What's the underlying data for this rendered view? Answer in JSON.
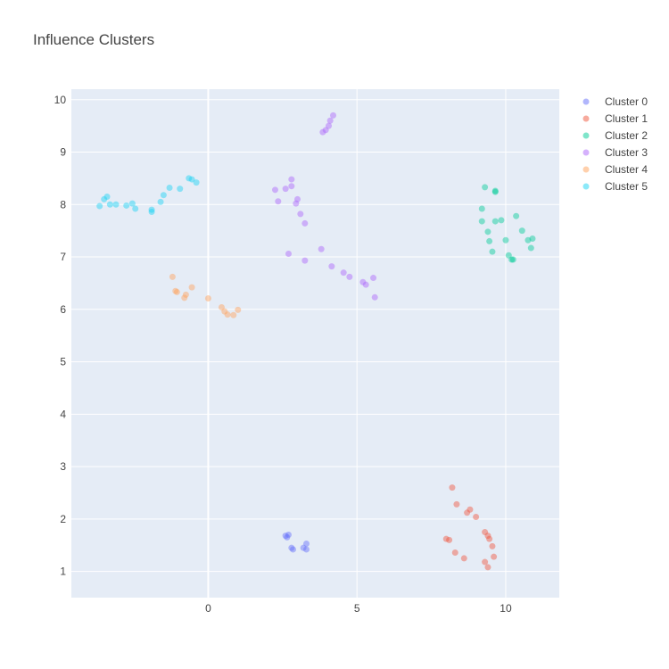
{
  "chart_data": {
    "type": "scatter",
    "title": "Influence Clusters",
    "xlabel": "",
    "ylabel": "",
    "xlim": [
      -4.6,
      11.8
    ],
    "ylim": [
      0.5,
      10.2
    ],
    "x_ticks": [
      0,
      5,
      10
    ],
    "y_ticks": [
      1,
      2,
      3,
      4,
      5,
      6,
      7,
      8,
      9,
      10
    ],
    "grid": true,
    "legend_position": "top-right",
    "series": [
      {
        "name": "Cluster 0",
        "color": "#636efa",
        "points": [
          [
            2.6,
            1.68
          ],
          [
            2.7,
            1.7
          ],
          [
            2.65,
            1.65
          ],
          [
            2.8,
            1.45
          ],
          [
            2.85,
            1.42
          ],
          [
            3.2,
            1.45
          ],
          [
            3.3,
            1.42
          ],
          [
            3.3,
            1.53
          ]
        ]
      },
      {
        "name": "Cluster 1",
        "color": "#EF553B",
        "points": [
          [
            8.2,
            2.6
          ],
          [
            8.35,
            2.28
          ],
          [
            8.7,
            2.12
          ],
          [
            8.8,
            2.18
          ],
          [
            9.0,
            2.04
          ],
          [
            8.0,
            1.62
          ],
          [
            8.1,
            1.6
          ],
          [
            9.3,
            1.75
          ],
          [
            9.4,
            1.68
          ],
          [
            9.45,
            1.62
          ],
          [
            9.55,
            1.48
          ],
          [
            8.3,
            1.36
          ],
          [
            8.6,
            1.25
          ],
          [
            9.6,
            1.28
          ],
          [
            9.3,
            1.18
          ],
          [
            9.4,
            1.08
          ]
        ]
      },
      {
        "name": "Cluster 2",
        "color": "#00cc96",
        "points": [
          [
            9.3,
            8.33
          ],
          [
            9.65,
            8.26
          ],
          [
            9.65,
            8.24
          ],
          [
            9.2,
            7.92
          ],
          [
            9.2,
            7.68
          ],
          [
            9.4,
            7.48
          ],
          [
            9.45,
            7.3
          ],
          [
            9.55,
            7.1
          ],
          [
            9.65,
            7.68
          ],
          [
            9.85,
            7.7
          ],
          [
            10.0,
            7.32
          ],
          [
            10.1,
            7.03
          ],
          [
            10.2,
            6.95
          ],
          [
            10.25,
            6.95
          ],
          [
            10.35,
            7.78
          ],
          [
            10.55,
            7.5
          ],
          [
            10.75,
            7.32
          ],
          [
            10.85,
            7.17
          ],
          [
            10.9,
            7.35
          ]
        ]
      },
      {
        "name": "Cluster 3",
        "color": "#ab63fa",
        "points": [
          [
            3.85,
            9.38
          ],
          [
            3.95,
            9.42
          ],
          [
            4.05,
            9.5
          ],
          [
            4.1,
            9.6
          ],
          [
            4.2,
            9.7
          ],
          [
            2.25,
            8.28
          ],
          [
            2.35,
            8.06
          ],
          [
            2.6,
            8.3
          ],
          [
            2.8,
            8.48
          ],
          [
            2.8,
            8.35
          ],
          [
            3.0,
            8.1
          ],
          [
            2.95,
            8.02
          ],
          [
            3.1,
            7.82
          ],
          [
            3.25,
            7.64
          ],
          [
            3.8,
            7.15
          ],
          [
            2.7,
            7.06
          ],
          [
            3.25,
            6.93
          ],
          [
            4.15,
            6.82
          ],
          [
            4.55,
            6.7
          ],
          [
            4.75,
            6.62
          ],
          [
            5.2,
            6.52
          ],
          [
            5.3,
            6.47
          ],
          [
            5.55,
            6.6
          ],
          [
            5.6,
            6.23
          ]
        ]
      },
      {
        "name": "Cluster 4",
        "color": "#FFA15A",
        "points": [
          [
            -1.2,
            6.62
          ],
          [
            -1.1,
            6.35
          ],
          [
            -1.05,
            6.33
          ],
          [
            -0.8,
            6.22
          ],
          [
            -0.75,
            6.28
          ],
          [
            -0.55,
            6.42
          ],
          [
            0.0,
            6.21
          ],
          [
            0.45,
            6.04
          ],
          [
            0.55,
            5.96
          ],
          [
            0.65,
            5.9
          ],
          [
            0.85,
            5.89
          ],
          [
            1.0,
            5.99
          ]
        ]
      },
      {
        "name": "Cluster 5",
        "color": "#19d3f3",
        "points": [
          [
            -3.65,
            7.97
          ],
          [
            -3.5,
            8.1
          ],
          [
            -3.4,
            8.15
          ],
          [
            -3.3,
            8.0
          ],
          [
            -3.1,
            8.0
          ],
          [
            -2.75,
            7.98
          ],
          [
            -2.55,
            8.02
          ],
          [
            -2.45,
            7.92
          ],
          [
            -1.9,
            7.9
          ],
          [
            -1.9,
            7.86
          ],
          [
            -1.6,
            8.05
          ],
          [
            -1.5,
            8.18
          ],
          [
            -1.3,
            8.32
          ],
          [
            -0.95,
            8.3
          ],
          [
            -0.65,
            8.5
          ],
          [
            -0.55,
            8.48
          ],
          [
            -0.4,
            8.42
          ]
        ]
      }
    ]
  }
}
